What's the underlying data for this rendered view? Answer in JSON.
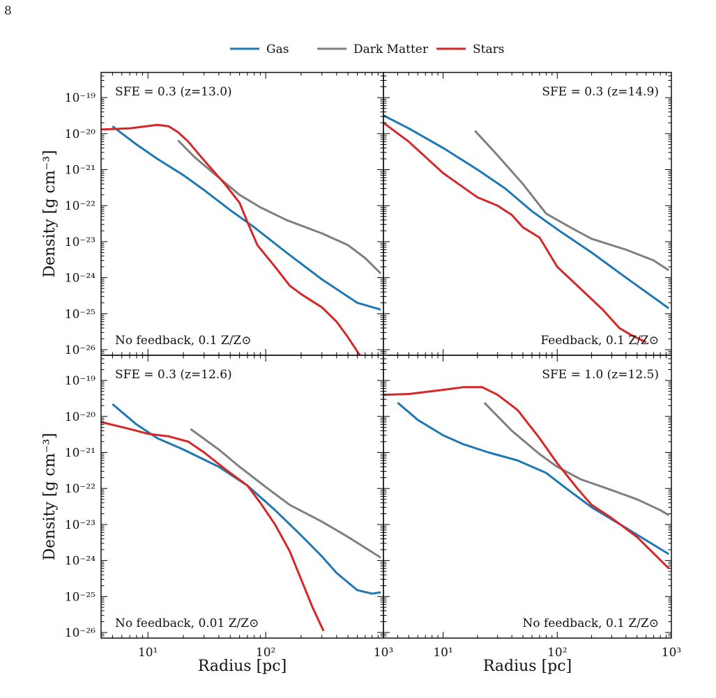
{
  "page_number": "8",
  "legend": {
    "placement": "top-center",
    "entries": [
      {
        "name": "Gas",
        "color": "#1f77b4"
      },
      {
        "name": "Dark Matter",
        "color": "#7f7f7f"
      },
      {
        "name": "Stars",
        "color": "#d62728"
      }
    ]
  },
  "colors": {
    "gas": "#1f77b4",
    "dark_matter": "#7f7f7f",
    "stars": "#d62728"
  },
  "chart_data": [
    {
      "type": "line",
      "panel": "top-left",
      "title": "SFE = 0.3 (z=13.0)",
      "annotation": "No feedback, 0.1 Z/Z⊙",
      "ylabel": "Density [g cm⁻³]",
      "xlabel": "",
      "xscale": "log",
      "yscale": "log",
      "xlim": [
        4,
        1000
      ],
      "ylim": [
        7e-27,
        5e-19
      ],
      "xticklabels": [],
      "yticklabels": [
        "10⁻¹⁹",
        "10⁻²⁰",
        "10⁻²¹",
        "10⁻²²",
        "10⁻²³",
        "10⁻²⁴",
        "10⁻²⁵",
        "10⁻²⁶"
      ],
      "series": [
        {
          "name": "Gas",
          "key": "gas",
          "x": [
            5,
            8,
            12,
            20,
            30,
            50,
            80,
            150,
            300,
            600,
            950
          ],
          "y": [
            1.6e-20,
            5e-21,
            2e-21,
            7e-22,
            2.7e-22,
            7.5e-23,
            2.5e-23,
            5e-24,
            9e-25,
            2e-25,
            1.3e-25
          ]
        },
        {
          "name": "Dark Matter",
          "key": "dark_matter",
          "x": [
            18,
            25,
            40,
            60,
            90,
            150,
            300,
            500,
            700,
            950
          ],
          "y": [
            6.5e-21,
            2.2e-21,
            6e-22,
            2e-22,
            9e-23,
            4e-23,
            1.7e-23,
            8e-24,
            3.5e-24,
            1.3e-24
          ]
        },
        {
          "name": "Stars",
          "key": "stars",
          "x": [
            4,
            7,
            12,
            15,
            18,
            22,
            30,
            45,
            60,
            70,
            85,
            120,
            160,
            200,
            300,
            400,
            500,
            650
          ],
          "y": [
            1.3e-20,
            1.4e-20,
            1.75e-20,
            1.6e-20,
            1.1e-20,
            6e-21,
            1.8e-21,
            4e-22,
            1.2e-22,
            3.5e-23,
            8e-24,
            2e-24,
            6e-25,
            3.5e-25,
            1.5e-25,
            6e-26,
            2.2e-26,
            6e-27
          ]
        }
      ]
    },
    {
      "type": "line",
      "panel": "top-right",
      "title": "SFE = 0.3 (z=14.9)",
      "annotation": "Feedback, 0.1 Z/Z⊙",
      "xlabel": "",
      "ylabel": "",
      "xscale": "log",
      "yscale": "log",
      "xlim": [
        3,
        1000
      ],
      "ylim": [
        7e-27,
        5e-19
      ],
      "xticklabels": [],
      "yticklabels": [],
      "series": [
        {
          "name": "Gas",
          "key": "gas",
          "x": [
            3,
            5,
            10,
            20,
            35,
            60,
            100,
            200,
            400,
            950
          ],
          "y": [
            3.2e-20,
            1.4e-20,
            4e-21,
            1e-21,
            3e-22,
            7e-23,
            2.2e-23,
            5e-24,
            1e-24,
            1.4e-25
          ]
        },
        {
          "name": "Dark Matter",
          "key": "dark_matter",
          "x": [
            19,
            30,
            50,
            80,
            130,
            200,
            400,
            700,
            950
          ],
          "y": [
            1.2e-20,
            2.5e-21,
            4e-22,
            6e-23,
            2.5e-23,
            1.2e-23,
            6e-24,
            3e-24,
            1.6e-24
          ]
        },
        {
          "name": "Stars",
          "key": "stars",
          "x": [
            3,
            5,
            10,
            20,
            30,
            40,
            50,
            70,
            100,
            150,
            250,
            350,
            450,
            600
          ],
          "y": [
            2e-20,
            6e-21,
            8e-22,
            1.7e-22,
            1e-22,
            5.5e-23,
            2.5e-23,
            1.3e-23,
            2e-24,
            6e-25,
            1.3e-25,
            4e-26,
            2.5e-26,
            1.6e-26
          ]
        }
      ]
    },
    {
      "type": "line",
      "panel": "bottom-left",
      "title": "SFE = 0.3 (z=12.6)",
      "annotation": "No feedback, 0.01 Z/Z⊙",
      "xlabel": "Radius [pc]",
      "ylabel": "Density [g cm⁻³]",
      "xscale": "log",
      "yscale": "log",
      "xlim": [
        4,
        1000
      ],
      "ylim": [
        7e-27,
        5e-19
      ],
      "xticklabels": [
        "10¹",
        "10²",
        "10³"
      ],
      "yticklabels": [
        "10⁻¹⁹",
        "10⁻²⁰",
        "10⁻²¹",
        "10⁻²²",
        "10⁻²³",
        "10⁻²⁴",
        "10⁻²⁵",
        "10⁻²⁶"
      ],
      "series": [
        {
          "name": "Gas",
          "key": "gas",
          "x": [
            5,
            8,
            12,
            20,
            40,
            70,
            120,
            200,
            300,
            400,
            600,
            800,
            950
          ],
          "y": [
            2.2e-20,
            6e-21,
            2.5e-21,
            1.2e-21,
            4e-22,
            1.2e-22,
            2.5e-23,
            5e-24,
            1.3e-24,
            4.5e-25,
            1.5e-25,
            1.2e-25,
            1.3e-25
          ]
        },
        {
          "name": "Dark Matter",
          "key": "dark_matter",
          "x": [
            23,
            40,
            60,
            100,
            160,
            300,
            500,
            950
          ],
          "y": [
            4.5e-21,
            1.2e-21,
            4e-22,
            1.1e-22,
            3.5e-23,
            1.2e-23,
            4.5e-24,
            1.2e-24
          ]
        },
        {
          "name": "Stars",
          "key": "stars",
          "x": [
            4,
            7,
            10,
            15,
            22,
            30,
            45,
            70,
            90,
            120,
            160,
            200,
            250,
            310
          ],
          "y": [
            7e-21,
            4.5e-21,
            3.3e-21,
            2.8e-21,
            2e-21,
            1e-21,
            3.5e-22,
            1.2e-22,
            4e-23,
            1e-23,
            1.8e-24,
            3e-25,
            5e-26,
            1.1e-26
          ]
        }
      ]
    },
    {
      "type": "line",
      "panel": "bottom-right",
      "title": "SFE = 1.0 (z=12.5)",
      "annotation": "No feedback, 0.1 Z/Z⊙",
      "xlabel": "Radius [pc]",
      "ylabel": "",
      "xscale": "log",
      "yscale": "log",
      "xlim": [
        3,
        1000
      ],
      "ylim": [
        7e-27,
        5e-19
      ],
      "xticklabels": [
        "10¹",
        "10²",
        "10³"
      ],
      "yticklabels": [],
      "series": [
        {
          "name": "Gas",
          "key": "gas",
          "x": [
            4,
            6,
            10,
            15,
            25,
            45,
            80,
            120,
            200,
            400,
            950
          ],
          "y": [
            2.4e-20,
            8e-21,
            3e-21,
            1.7e-21,
            1e-21,
            6e-22,
            2.7e-22,
            1e-22,
            3e-23,
            8e-24,
            1.5e-24
          ]
        },
        {
          "name": "Dark Matter",
          "key": "dark_matter",
          "x": [
            23,
            40,
            70,
            100,
            160,
            300,
            500,
            800,
            950
          ],
          "y": [
            2.4e-20,
            4e-21,
            9e-22,
            4e-22,
            1.8e-22,
            9e-23,
            5e-23,
            2.5e-23,
            1.8e-23
          ]
        },
        {
          "name": "Stars",
          "key": "stars",
          "x": [
            3,
            5,
            10,
            15,
            22,
            30,
            45,
            70,
            100,
            150,
            200,
            300,
            500,
            950
          ],
          "y": [
            4e-20,
            4.2e-20,
            5.5e-20,
            6.5e-20,
            6.5e-20,
            4e-20,
            1.5e-20,
            2.5e-21,
            5e-22,
            1e-22,
            3.5e-23,
            1.5e-23,
            4.5e-24,
            6e-25
          ]
        }
      ]
    }
  ]
}
